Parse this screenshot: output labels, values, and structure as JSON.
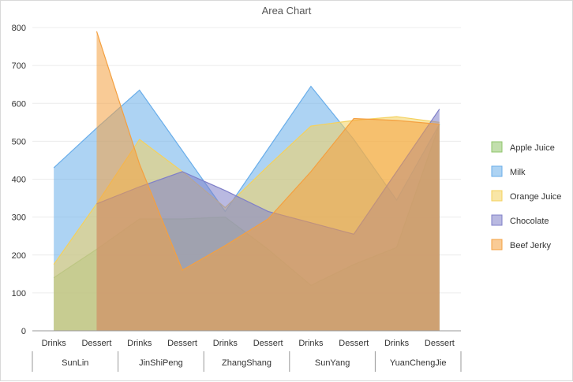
{
  "colors": {
    "apple_juice": "#8fc46a",
    "milk": "#6aaeea",
    "orange_juice": "#f4d15e",
    "chocolate": "#7f7fc8",
    "beef_jerky": "#f4a040"
  },
  "chart_data": {
    "type": "area",
    "title": "Area Chart",
    "ylim": [
      0,
      800
    ],
    "yticks": [
      0,
      100,
      200,
      300,
      400,
      500,
      600,
      700,
      800
    ],
    "groups": [
      "SunLin",
      "JinShiPeng",
      "ZhangShang",
      "SunYang",
      "YuanChengJie"
    ],
    "categories": [
      "Drinks",
      "Dessert",
      "Drinks",
      "Dessert",
      "Drinks",
      "Dessert",
      "Drinks",
      "Dessert",
      "Drinks",
      "Dessert"
    ],
    "legend_position": "right",
    "series": [
      {
        "name": "Apple Juice",
        "color_key": "apple_juice",
        "values": [
          140,
          215,
          295,
          295,
          300,
          215,
          120,
          175,
          220,
          545
        ]
      },
      {
        "name": "Milk",
        "color_key": "milk",
        "values": [
          430,
          535,
          635,
          475,
          315,
          480,
          645,
          505,
          345,
          545
        ]
      },
      {
        "name": "Orange Juice",
        "color_key": "orange_juice",
        "values": [
          175,
          335,
          505,
          420,
          325,
          435,
          540,
          555,
          565,
          550
        ]
      },
      {
        "name": "Chocolate",
        "color_key": "chocolate",
        "values": [
          null,
          335,
          380,
          420,
          370,
          315,
          285,
          255,
          420,
          585
        ]
      },
      {
        "name": "Beef Jerky",
        "color_key": "beef_jerky",
        "values": [
          null,
          790,
          440,
          160,
          225,
          295,
          420,
          560,
          555,
          545
        ]
      }
    ]
  }
}
